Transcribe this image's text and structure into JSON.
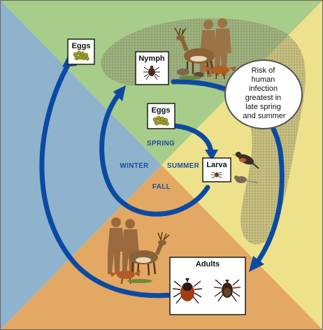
{
  "seasons": {
    "spring": "SPRING",
    "summer": "SUMMER",
    "fall": "FALL",
    "winter": "WINTER"
  },
  "stages": {
    "eggs_outer": "Eggs",
    "nymph": "Nymph",
    "eggs_inner": "Eggs",
    "larva": "Larva",
    "adults": "Adults"
  },
  "callout": {
    "lines": [
      "Risk of",
      "human",
      "infection",
      "greatest in",
      "late spring",
      "and summer"
    ]
  },
  "colors": {
    "spring_quadrant": "#a8cc8a",
    "summer_quadrant": "#eee18c",
    "fall_quadrant": "#e3a863",
    "winter_quadrant": "#8fb3cc",
    "risk_zone": "#8a8a6a",
    "arrow": "#0b4aa2",
    "season_text": "#1a4f9a"
  }
}
